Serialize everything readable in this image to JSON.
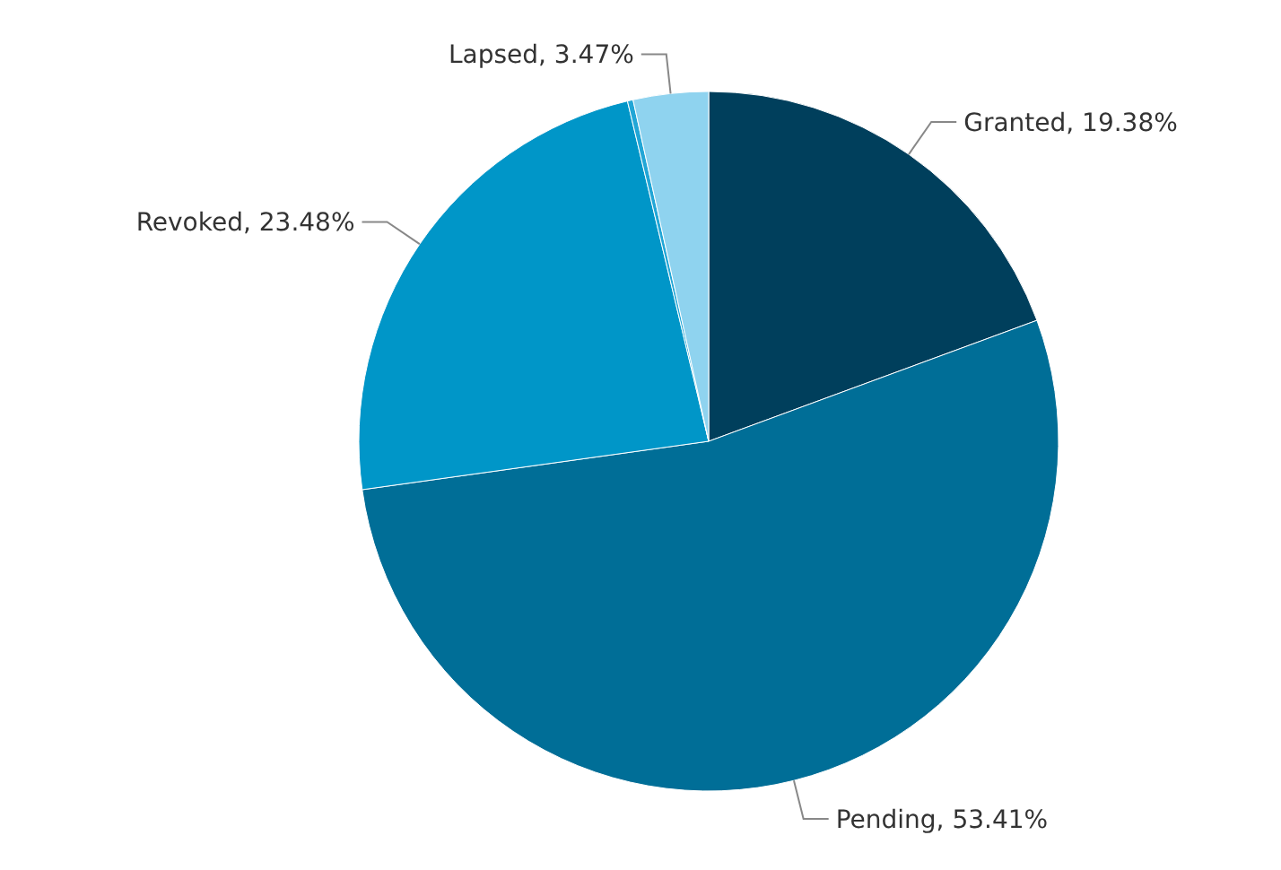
{
  "chart_data": {
    "type": "pie",
    "categories": [
      "Granted",
      "Pending",
      "Revoked",
      null,
      "Lapsed"
    ],
    "values": [
      19.38,
      53.41,
      23.48,
      0.26,
      3.47
    ],
    "value_labels": [
      "19.38%",
      "53.41%",
      "23.48%",
      null,
      "3.47%"
    ],
    "colors": [
      "#003f5c",
      "#006e97",
      "#0096c8",
      "#22a6d6",
      "#8fd3ef"
    ],
    "legend": false
  }
}
